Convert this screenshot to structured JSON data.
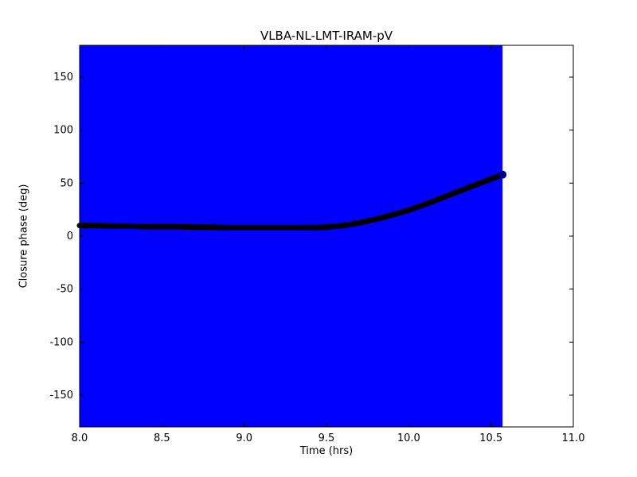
{
  "chart_data": {
    "type": "line",
    "title": "VLBA-NL-LMT-IRAM-pV",
    "xlabel": "Time (hrs)",
    "ylabel": "Closure phase (deg)",
    "xlim": [
      8.0,
      11.0
    ],
    "ylim": [
      -180,
      180
    ],
    "xticks": [
      8.0,
      8.5,
      9.0,
      9.5,
      10.0,
      10.5,
      11.0
    ],
    "xtick_labels": [
      "8.0",
      "8.5",
      "9.0",
      "9.5",
      "10.0",
      "10.5",
      "11.0"
    ],
    "yticks": [
      -150,
      -100,
      -50,
      0,
      50,
      100,
      150
    ],
    "ytick_labels": [
      "-150",
      "-100",
      "-50",
      "0",
      "50",
      "100",
      "150"
    ],
    "grid": false,
    "legend": null,
    "errorbar_band": {
      "x_start": 8.0,
      "x_end": 10.57,
      "y_min": -180,
      "y_max": 180,
      "color": "#0000ff"
    },
    "series": [
      {
        "name": "closure-phase",
        "color": "#000000",
        "end_marker_color": "#00008b",
        "x": [
          8.0,
          8.1,
          8.2,
          8.3,
          8.4,
          8.5,
          8.6,
          8.7,
          8.8,
          8.9,
          9.0,
          9.1,
          9.2,
          9.3,
          9.4,
          9.5,
          9.6,
          9.7,
          9.8,
          9.9,
          10.0,
          10.1,
          10.2,
          10.3,
          10.4,
          10.5,
          10.57
        ],
        "y": [
          10,
          10,
          9.5,
          9.5,
          9,
          9,
          9,
          8.5,
          8.5,
          8,
          8,
          8,
          8,
          8,
          8,
          8.5,
          10,
          12.5,
          16,
          20,
          24.5,
          30,
          36,
          42,
          48,
          54,
          58
        ]
      }
    ],
    "frame_color": "#000000",
    "background_color": "#ffffff"
  }
}
